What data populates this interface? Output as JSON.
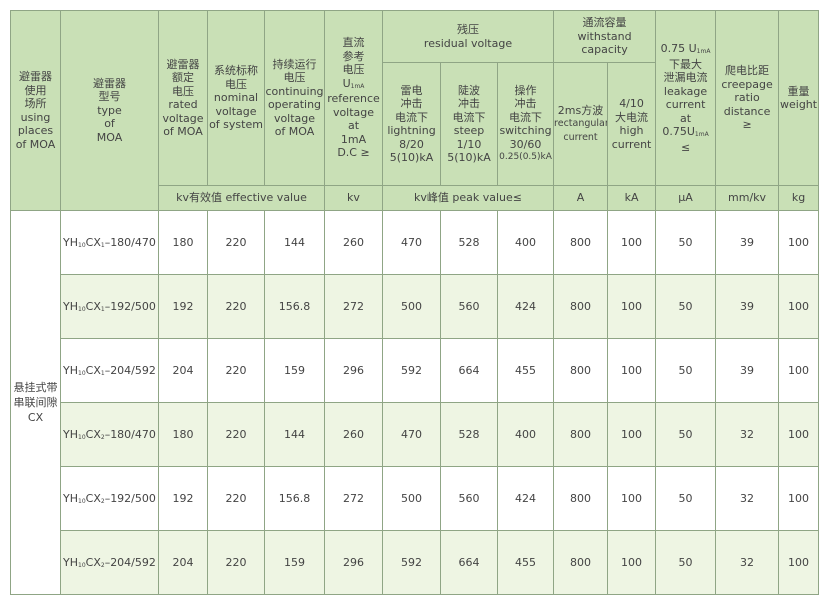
{
  "header": {
    "use_place": [
      "避雷器",
      "使用",
      "场所",
      "using",
      "places",
      "of  MOA"
    ],
    "model": [
      "避雷器",
      "型号",
      "type",
      "of",
      "MOA"
    ],
    "rated_voltage": [
      "避雷器",
      "额定",
      "电压",
      "rated",
      "voltage",
      "of MOA"
    ],
    "nominal_voltage": [
      "系统标称",
      "电压",
      "nominal",
      "voltage",
      "of system"
    ],
    "continuous_voltage": [
      "持续运行",
      "电压",
      "continuing",
      "operating",
      "voltage",
      "of MOA"
    ],
    "reference_voltage": [
      "直流",
      "参考",
      "电压",
      {
        "text": "U",
        "sub": "1mA"
      },
      "reference",
      "voltage",
      "at",
      "1mA",
      "D.C  ≥"
    ],
    "residual_voltage": [
      "残压",
      "residual voltage"
    ],
    "lightning": [
      "雷电",
      "冲击",
      "电流下",
      "lightning",
      "8/20",
      "5(10)kA"
    ],
    "steep": [
      "陡波",
      "冲击",
      "电流下",
      "steep",
      "1/10",
      "5(10)kA"
    ],
    "switching": [
      "操作",
      "冲击",
      "电流下",
      "switching",
      "30/60",
      "0.25(0.5)kA"
    ],
    "withstand_capacity": [
      "通流容量",
      "withstand capacity"
    ],
    "rectangular": [
      "2ms方波",
      "rectangular",
      "current"
    ],
    "high_current": [
      "4/10",
      "大电流",
      "high",
      "current"
    ],
    "leakage": [
      {
        "text": "0.75 U",
        "sub": "1mA"
      },
      "下最大",
      "泄漏电流",
      "leakage",
      "current",
      "at",
      {
        "text": "0.75U",
        "sub": "1mA"
      },
      "≤"
    ],
    "creepage": [
      "爬电比距",
      "creepage",
      "ratio",
      "distance",
      "≥"
    ],
    "weight": [
      "重量",
      "weight"
    ]
  },
  "units": {
    "effective": "kv有效值  effective value",
    "reference": "kv",
    "peak": "kv峰值  peak value≤",
    "rectangular": "A",
    "high_current": "kA",
    "leakage": "μA",
    "creepage": "mm/kv",
    "weight": "kg"
  },
  "table": {
    "group": [
      "悬挂式带",
      "串联间隙",
      "CX"
    ],
    "rows": [
      {
        "model": [
          "YH",
          {
            "sub": "10"
          },
          "CX",
          {
            "sub": "1"
          },
          "–180/470"
        ],
        "values": [
          180,
          220,
          144,
          260,
          470,
          528,
          400,
          800,
          100,
          50,
          39,
          100
        ]
      },
      {
        "model": [
          "YH",
          {
            "sub": "10"
          },
          "CX",
          {
            "sub": "1"
          },
          "–192/500"
        ],
        "values": [
          192,
          220,
          156.8,
          272,
          500,
          560,
          424,
          800,
          100,
          50,
          39,
          100
        ]
      },
      {
        "model": [
          "YH",
          {
            "sub": "10"
          },
          "CX",
          {
            "sub": "1"
          },
          "–204/592"
        ],
        "values": [
          204,
          220,
          159,
          296,
          592,
          664,
          455,
          800,
          100,
          50,
          39,
          100
        ]
      },
      {
        "model": [
          "YH",
          {
            "sub": "10"
          },
          "CX",
          {
            "sub": "2"
          },
          "–180/470"
        ],
        "values": [
          180,
          220,
          144,
          260,
          470,
          528,
          400,
          800,
          100,
          50,
          32,
          100
        ]
      },
      {
        "model": [
          "YH",
          {
            "sub": "10"
          },
          "CX",
          {
            "sub": "2"
          },
          "–192/500"
        ],
        "values": [
          192,
          220,
          156.8,
          272,
          500,
          560,
          424,
          800,
          100,
          50,
          32,
          100
        ]
      },
      {
        "model": [
          "YH",
          {
            "sub": "10"
          },
          "CX",
          {
            "sub": "2"
          },
          "–204/592"
        ],
        "values": [
          204,
          220,
          159,
          296,
          592,
          664,
          455,
          800,
          100,
          50,
          32,
          100
        ]
      }
    ]
  }
}
